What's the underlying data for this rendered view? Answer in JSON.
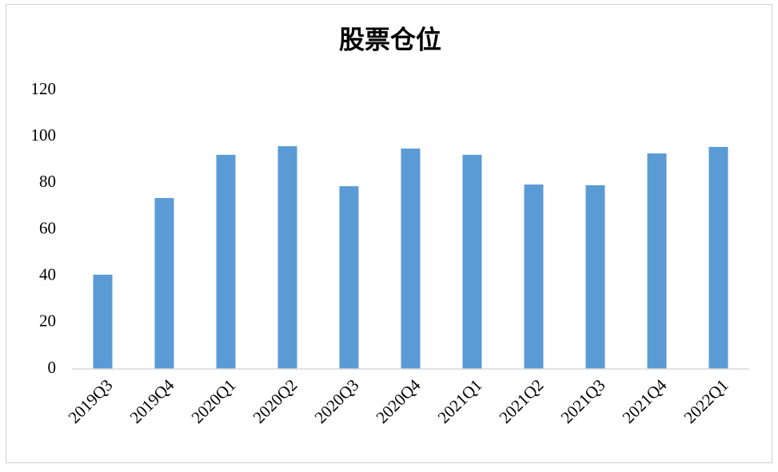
{
  "chart_data": {
    "type": "bar",
    "title": "股票仓位",
    "categories": [
      "2019Q3",
      "2019Q4",
      "2020Q1",
      "2020Q2",
      "2020Q3",
      "2020Q4",
      "2021Q1",
      "2021Q2",
      "2021Q3",
      "2021Q4",
      "2022Q1"
    ],
    "values": [
      40.6,
      73.6,
      92.2,
      95.9,
      78.7,
      94.9,
      92.2,
      79.4,
      79.1,
      92.8,
      95.6
    ],
    "color": "#5b9bd5",
    "ylim": [
      0,
      120
    ],
    "yticks": [
      0,
      20,
      40,
      60,
      80,
      100,
      120
    ],
    "grid": false
  }
}
